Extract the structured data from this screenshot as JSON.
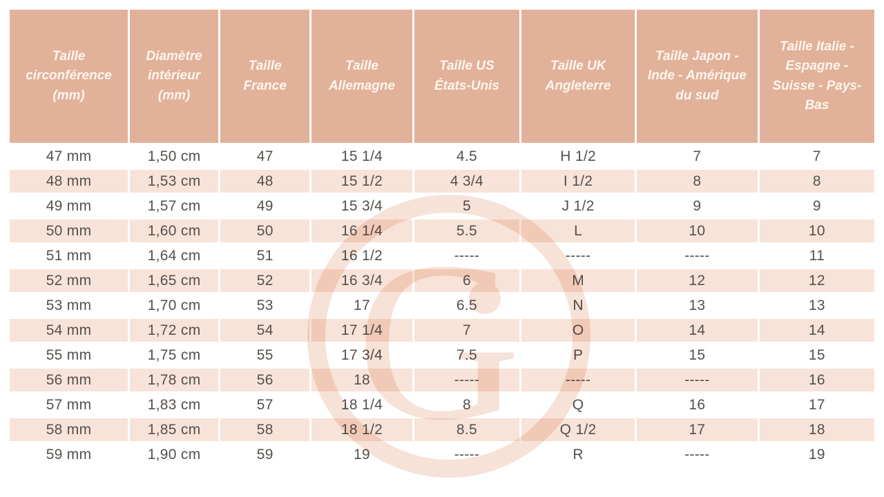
{
  "table": {
    "headers": [
      "Taille circonférence (mm)",
      "Diamètre intérieur (mm)",
      "Taille France",
      "Taille Allemagne",
      "Taille US États-Unis",
      "Taille UK Angleterre",
      "Taille Japon - Inde - Amérique du sud",
      "Taille Italie - Espagne - Suisse - Pays-Bas"
    ],
    "rows": [
      [
        "47 mm",
        "1,50 cm",
        "47",
        "15 1/4",
        "4.5",
        "H 1/2",
        "7",
        "7"
      ],
      [
        "48 mm",
        "1,53 cm",
        "48",
        "15 1/2",
        "4 3/4",
        "I 1/2",
        "8",
        "8"
      ],
      [
        "49 mm",
        "1,57 cm",
        "49",
        "15 3/4",
        "5",
        "J 1/2",
        "9",
        "9"
      ],
      [
        "50 mm",
        "1,60 cm",
        "50",
        "16 1/4",
        "5.5",
        "L",
        "10",
        "10"
      ],
      [
        "51 mm",
        "1,64 cm",
        "51",
        "16 1/2",
        "-----",
        "-----",
        "-----",
        "11"
      ],
      [
        "52 mm",
        "1,65 cm",
        "52",
        "16 3/4",
        "6",
        "M",
        "12",
        "12"
      ],
      [
        "53 mm",
        "1,70 cm",
        "53",
        "17",
        "6.5",
        "N",
        "13",
        "13"
      ],
      [
        "54 mm",
        "1,72 cm",
        "54",
        "17 1/4",
        "7",
        "O",
        "14",
        "14"
      ],
      [
        "55 mm",
        "1,75 cm",
        "55",
        "17 3/4",
        "7.5",
        "P",
        "15",
        "15"
      ],
      [
        "56 mm",
        "1,78 cm",
        "56",
        "18",
        "-----",
        "-----",
        "-----",
        "16"
      ],
      [
        "57 mm",
        "1,83 cm",
        "57",
        "18 1/4",
        "8",
        "Q",
        "16",
        "17"
      ],
      [
        "58 mm",
        "1,85 cm",
        "58",
        "18 1/2",
        "8.5",
        "Q 1/2",
        "17",
        "18"
      ],
      [
        "59 mm",
        "1,90 cm",
        "59",
        "19",
        "-----",
        "R",
        "-----",
        "19"
      ]
    ]
  },
  "watermark": {
    "icon": "g-ring-logo-watermark",
    "glyph": "G"
  },
  "colors": {
    "header_bg": "#e2b19a",
    "header_text": "#fdf5ee",
    "row_alt_bg": "#f8e3d8",
    "row_bg": "#ffffff",
    "cell_text": "#55504c",
    "watermark_tint": "#f6ddd1"
  }
}
